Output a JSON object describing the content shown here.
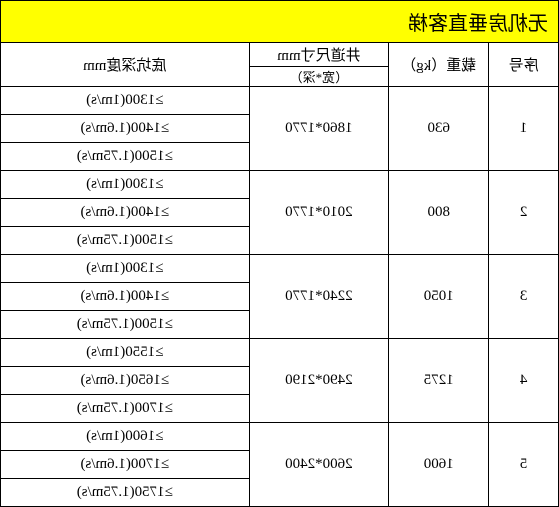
{
  "title": "无机房垂直客梯",
  "headers": {
    "seq": "序号",
    "weight": "载重（kg）",
    "shaft": "井道尺寸mm",
    "shaft_sub": "（宽*深）",
    "depth": "底坑深度mm"
  },
  "rows": [
    {
      "seq": "1",
      "weight": "630",
      "shaft": "1860*1770",
      "depths": [
        "≥1300(1m/s)",
        "≥1400(1.6m/s)",
        "≥1500(1.75m/s)"
      ]
    },
    {
      "seq": "2",
      "weight": "800",
      "shaft": "2010*1770",
      "depths": [
        "≥1300(1m/s)",
        "≥1400(1.6m/s)",
        "≥1500(1.75m/s)"
      ]
    },
    {
      "seq": "3",
      "weight": "1050",
      "shaft": "2240*1770",
      "depths": [
        "≥1300(1m/s)",
        "≥1400(1.6m/s)",
        "≥1500(1.75m/s)"
      ]
    },
    {
      "seq": "4",
      "weight": "1275",
      "shaft": "2490*2190",
      "depths": [
        "≥1550(1m/s)",
        "≥1650(1.6m/s)",
        "≥1700(1.75m/s)"
      ]
    },
    {
      "seq": "5",
      "weight": "1600",
      "shaft": "2600*2400",
      "depths": [
        "≥1600(1m/s)",
        "≥1700(1.6m/s)",
        "≥1750(1.75m/s)"
      ]
    }
  ]
}
